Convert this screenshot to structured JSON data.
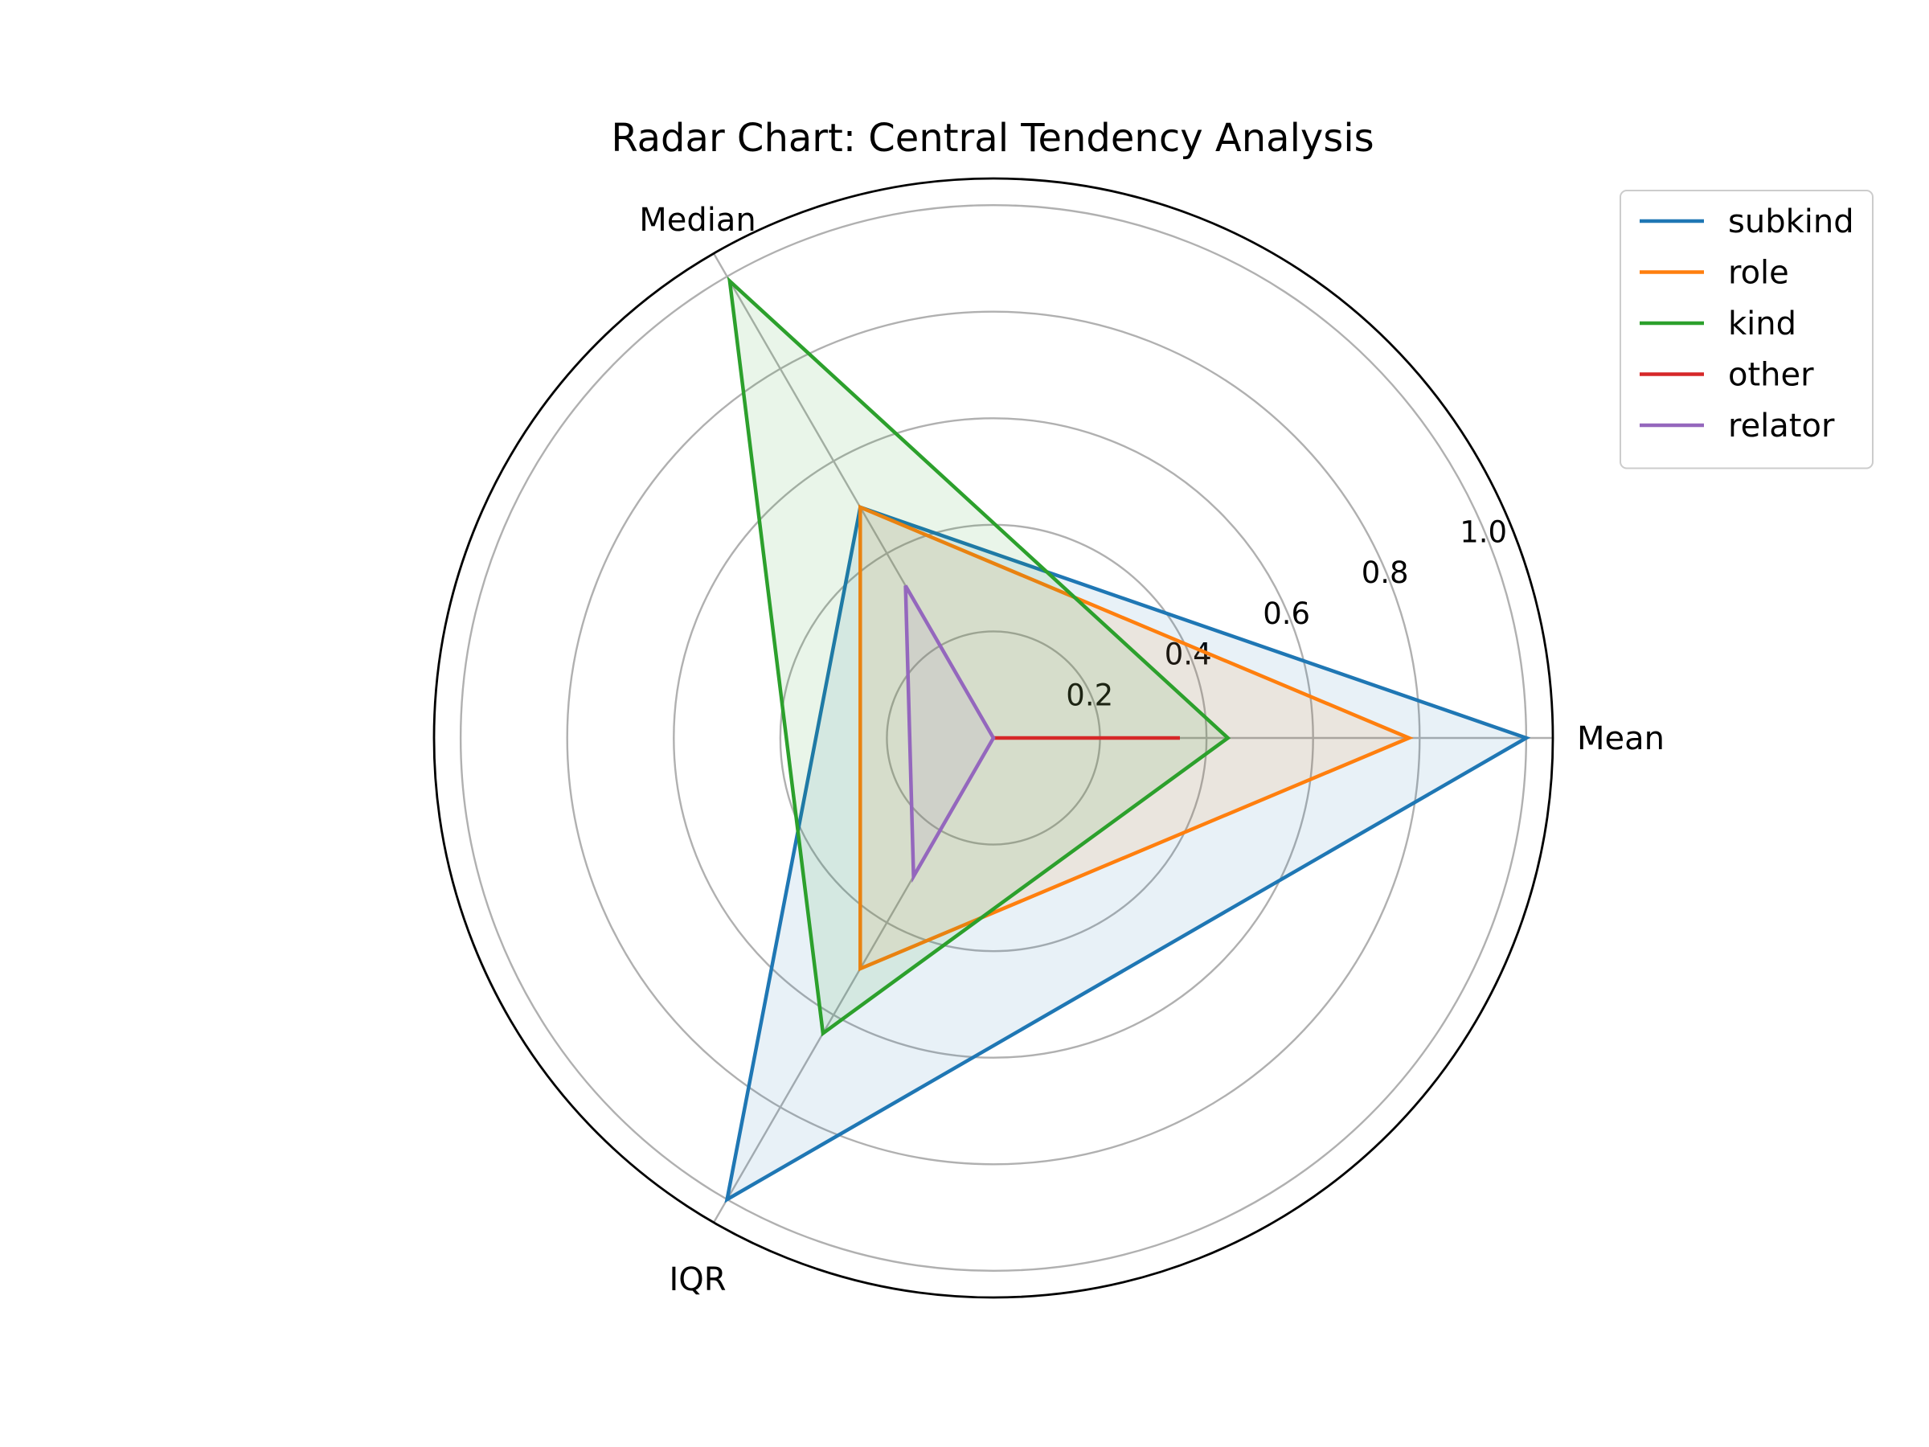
{
  "chart_data": {
    "type": "radar",
    "title": "Radar Chart: Central Tendency Analysis",
    "axes": [
      "Mean",
      "Median",
      "IQR"
    ],
    "rlim": [
      0,
      1.05
    ],
    "radial_ticks": [
      0.2,
      0.4,
      0.6,
      0.8,
      1.0
    ],
    "radial_tick_labels": [
      "0.2",
      "0.4",
      "0.6",
      "0.8",
      "1.0"
    ],
    "grid": true,
    "legend_position": "top-right",
    "series": [
      {
        "name": "subkind",
        "color": "#1f77b4",
        "values": [
          1.0,
          0.5,
          1.0
        ]
      },
      {
        "name": "role",
        "color": "#ff7f0e",
        "values": [
          0.78,
          0.5,
          0.5
        ]
      },
      {
        "name": "kind",
        "color": "#2ca02c",
        "values": [
          0.44,
          0.99,
          0.64
        ]
      },
      {
        "name": "other",
        "color": "#d62728",
        "values": [
          0.35,
          0.0,
          0.0
        ]
      },
      {
        "name": "relator",
        "color": "#9467bd",
        "values": [
          0.0,
          0.33,
          0.3
        ]
      }
    ]
  }
}
